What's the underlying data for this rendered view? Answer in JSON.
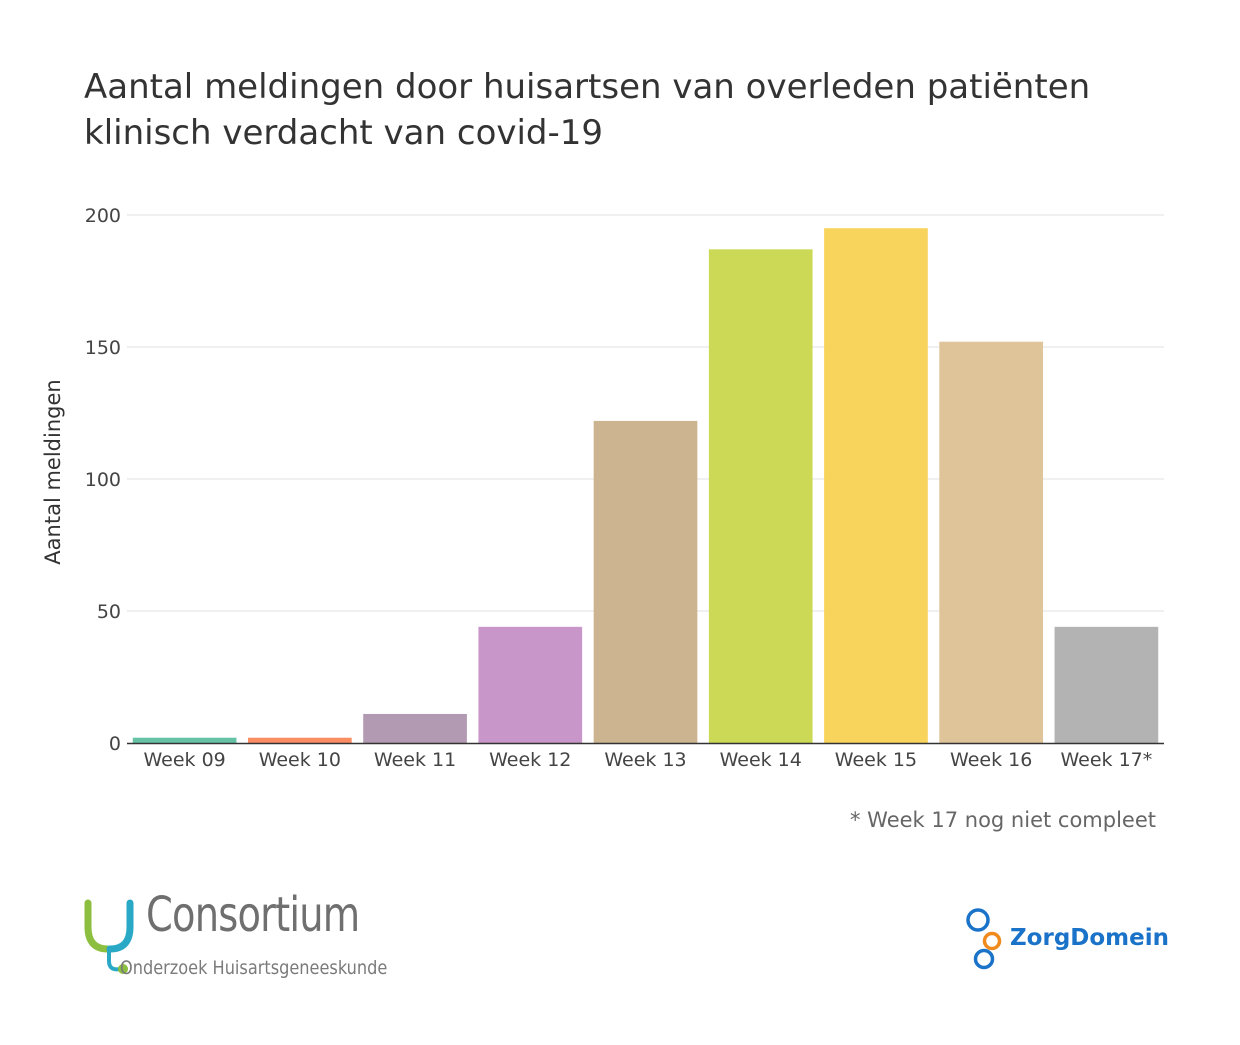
{
  "title_lines": [
    "Aantal meldingen door huisartsen van overleden patiënten",
    "klinisch verdacht van covid-19"
  ],
  "footnote": "* Week 17 nog niet compleet",
  "logos": {
    "consortium": {
      "name": "Consortium",
      "subtitle": "Onderzoek Huisartsgeneeskunde"
    },
    "zorgdomein": {
      "name": "ZorgDomein"
    }
  },
  "chart_data": {
    "type": "bar",
    "title": "Aantal meldingen door huisartsen van overleden patiënten klinisch verdacht van covid-19",
    "xlabel": "",
    "ylabel": "Aantal meldingen",
    "categories": [
      "Week 09",
      "Week 10",
      "Week 11",
      "Week 12",
      "Week 13",
      "Week 14",
      "Week 15",
      "Week 16",
      "Week 17*"
    ],
    "values": [
      2,
      2,
      11,
      44,
      122,
      187,
      195,
      152,
      44
    ],
    "colors": [
      "#66c2a5",
      "#fc8d62",
      "#b29bb2",
      "#c896c8",
      "#cdb491",
      "#ccd956",
      "#f9d45d",
      "#dfc399",
      "#b3b3b3"
    ],
    "ylim": [
      0,
      200
    ],
    "yticks": [
      0,
      50,
      100,
      150,
      200
    ],
    "grid": true
  }
}
